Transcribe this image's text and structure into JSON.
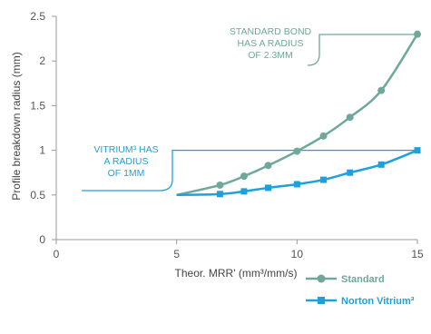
{
  "chart_data": {
    "type": "line",
    "xlabel": "Theor. MRR' (mm³/mm/s)",
    "ylabel": "Profile breakdown radius (mm)",
    "xlim": [
      0,
      15
    ],
    "ylim": [
      0,
      2.5
    ],
    "x_ticks": [
      "0",
      "5",
      "10",
      "15"
    ],
    "y_ticks": [
      "0",
      "0.5",
      "1",
      "1.5",
      "2",
      "2.5"
    ],
    "grid": false,
    "legend_position": "bottom-right",
    "series": [
      {
        "name": "Standard",
        "color": "#6fa89a",
        "marker": "circle",
        "x": [
          5,
          6.8,
          7.8,
          8.8,
          10,
          11.1,
          12.2,
          13.5,
          15
        ],
        "y": [
          0.5,
          0.61,
          0.71,
          0.83,
          0.99,
          1.16,
          1.37,
          1.67,
          2.3
        ]
      },
      {
        "name": "Norton Vitrium³",
        "color": "#1ea0dc",
        "marker": "square",
        "x": [
          5,
          6.8,
          7.8,
          8.8,
          10,
          11.1,
          12.2,
          13.5,
          15
        ],
        "y": [
          0.5,
          0.51,
          0.54,
          0.58,
          0.62,
          0.67,
          0.75,
          0.84,
          1.0
        ]
      }
    ],
    "annotations": [
      {
        "name": "standard-bond",
        "lines": [
          "STANDARD BOND",
          "HAS A RADIUS",
          "OF 2.3MM"
        ],
        "color": "#6fa89a",
        "target": [
          15,
          2.3
        ]
      },
      {
        "name": "vitrium",
        "lines": [
          "VITRIUM³ HAS",
          "A RADIUS",
          "OF 1MM"
        ],
        "color": "#1ea0dc",
        "target": [
          15,
          1.0
        ]
      }
    ]
  }
}
